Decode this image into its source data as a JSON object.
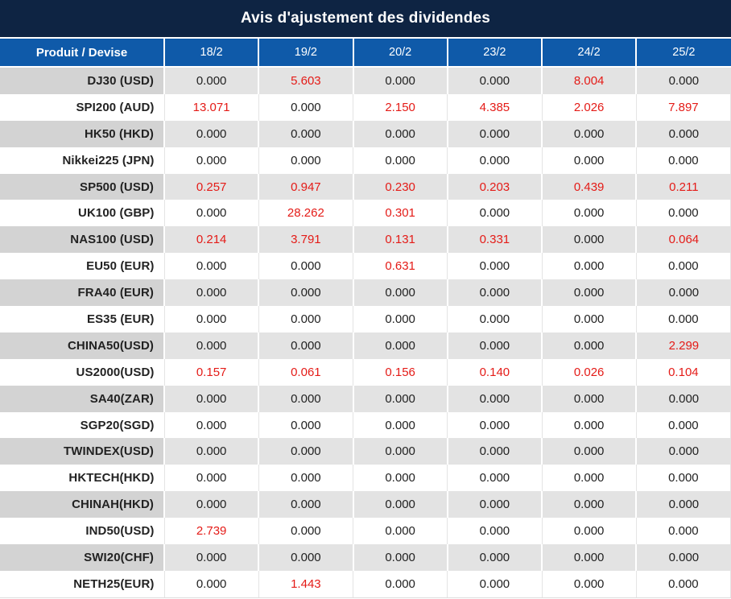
{
  "title": "Avis d'ajustement des dividendes",
  "colors": {
    "title_bg": "#0e2443",
    "header_bg": "#0f5aa9",
    "row_stripe_bg": "#e3e3e3",
    "label_stripe_bg": "#d3d3d3",
    "value_red": "#e41b17",
    "text_black": "#222222"
  },
  "table": {
    "corner_header": "Produit / Devise",
    "date_headers": [
      "18/2",
      "19/2",
      "20/2",
      "23/2",
      "24/2",
      "25/2"
    ],
    "rows": [
      {
        "label": "DJ30 (USD)",
        "values": [
          "0.000",
          "5.603",
          "0.000",
          "0.000",
          "8.004",
          "0.000"
        ]
      },
      {
        "label": "SPI200 (AUD)",
        "values": [
          "13.071",
          "0.000",
          "2.150",
          "4.385",
          "2.026",
          "7.897"
        ]
      },
      {
        "label": "HK50 (HKD)",
        "values": [
          "0.000",
          "0.000",
          "0.000",
          "0.000",
          "0.000",
          "0.000"
        ]
      },
      {
        "label": "Nikkei225 (JPN)",
        "values": [
          "0.000",
          "0.000",
          "0.000",
          "0.000",
          "0.000",
          "0.000"
        ]
      },
      {
        "label": "SP500 (USD)",
        "values": [
          "0.257",
          "0.947",
          "0.230",
          "0.203",
          "0.439",
          "0.211"
        ]
      },
      {
        "label": "UK100 (GBP)",
        "values": [
          "0.000",
          "28.262",
          "0.301",
          "0.000",
          "0.000",
          "0.000"
        ]
      },
      {
        "label": "NAS100 (USD)",
        "values": [
          "0.214",
          "3.791",
          "0.131",
          "0.331",
          "0.000",
          "0.064"
        ]
      },
      {
        "label": "EU50 (EUR)",
        "values": [
          "0.000",
          "0.000",
          "0.631",
          "0.000",
          "0.000",
          "0.000"
        ]
      },
      {
        "label": "FRA40 (EUR)",
        "values": [
          "0.000",
          "0.000",
          "0.000",
          "0.000",
          "0.000",
          "0.000"
        ]
      },
      {
        "label": "ES35 (EUR)",
        "values": [
          "0.000",
          "0.000",
          "0.000",
          "0.000",
          "0.000",
          "0.000"
        ]
      },
      {
        "label": "CHINA50(USD)",
        "values": [
          "0.000",
          "0.000",
          "0.000",
          "0.000",
          "0.000",
          "2.299"
        ]
      },
      {
        "label": "US2000(USD)",
        "values": [
          "0.157",
          "0.061",
          "0.156",
          "0.140",
          "0.026",
          "0.104"
        ]
      },
      {
        "label": "SA40(ZAR)",
        "values": [
          "0.000",
          "0.000",
          "0.000",
          "0.000",
          "0.000",
          "0.000"
        ]
      },
      {
        "label": "SGP20(SGD)",
        "values": [
          "0.000",
          "0.000",
          "0.000",
          "0.000",
          "0.000",
          "0.000"
        ]
      },
      {
        "label": "TWINDEX(USD)",
        "values": [
          "0.000",
          "0.000",
          "0.000",
          "0.000",
          "0.000",
          "0.000"
        ]
      },
      {
        "label": "HKTECH(HKD)",
        "values": [
          "0.000",
          "0.000",
          "0.000",
          "0.000",
          "0.000",
          "0.000"
        ]
      },
      {
        "label": "CHINAH(HKD)",
        "values": [
          "0.000",
          "0.000",
          "0.000",
          "0.000",
          "0.000",
          "0.000"
        ]
      },
      {
        "label": "IND50(USD)",
        "values": [
          "2.739",
          "0.000",
          "0.000",
          "0.000",
          "0.000",
          "0.000"
        ]
      },
      {
        "label": "SWI20(CHF)",
        "values": [
          "0.000",
          "0.000",
          "0.000",
          "0.000",
          "0.000",
          "0.000"
        ]
      },
      {
        "label": "NETH25(EUR)",
        "values": [
          "0.000",
          "1.443",
          "0.000",
          "0.000",
          "0.000",
          "0.000"
        ]
      }
    ]
  }
}
